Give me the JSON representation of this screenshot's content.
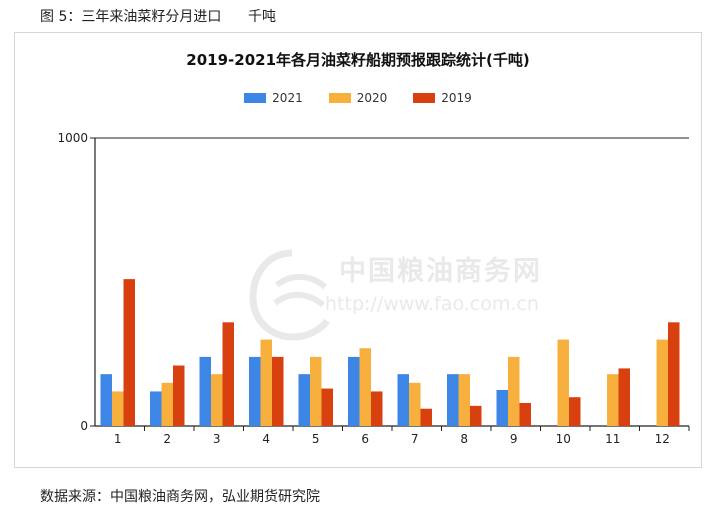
{
  "figure_caption": "图 5：三年来油菜籽分月进口      千吨",
  "source_note": "数据来源：中国粮油商务网，弘业期货研究院",
  "watermark": {
    "site_name": "中国粮油商务网",
    "url": "http://www.fao.com.cn"
  },
  "chart_data": {
    "type": "bar",
    "title": "2019-2021年各月油菜籽船期预报跟踪统计(千吨)",
    "xlabel": "",
    "ylabel": "",
    "ylim": [
      0,
      1000
    ],
    "y_ticks": [
      0,
      1000
    ],
    "grid": false,
    "legend_position": "top",
    "categories": [
      "1",
      "2",
      "3",
      "4",
      "5",
      "6",
      "7",
      "8",
      "9",
      "10",
      "11",
      "12"
    ],
    "series": [
      {
        "name": "2021",
        "color": "#3d86e6",
        "values": [
          180,
          120,
          240,
          240,
          180,
          240,
          180,
          180,
          125,
          null,
          null,
          null
        ]
      },
      {
        "name": "2020",
        "color": "#f7b03d",
        "values": [
          120,
          150,
          180,
          300,
          240,
          270,
          150,
          180,
          240,
          300,
          180,
          300
        ]
      },
      {
        "name": "2019",
        "color": "#d9400f",
        "values": [
          510,
          210,
          360,
          240,
          130,
          120,
          60,
          70,
          80,
          100,
          200,
          360
        ]
      }
    ]
  }
}
